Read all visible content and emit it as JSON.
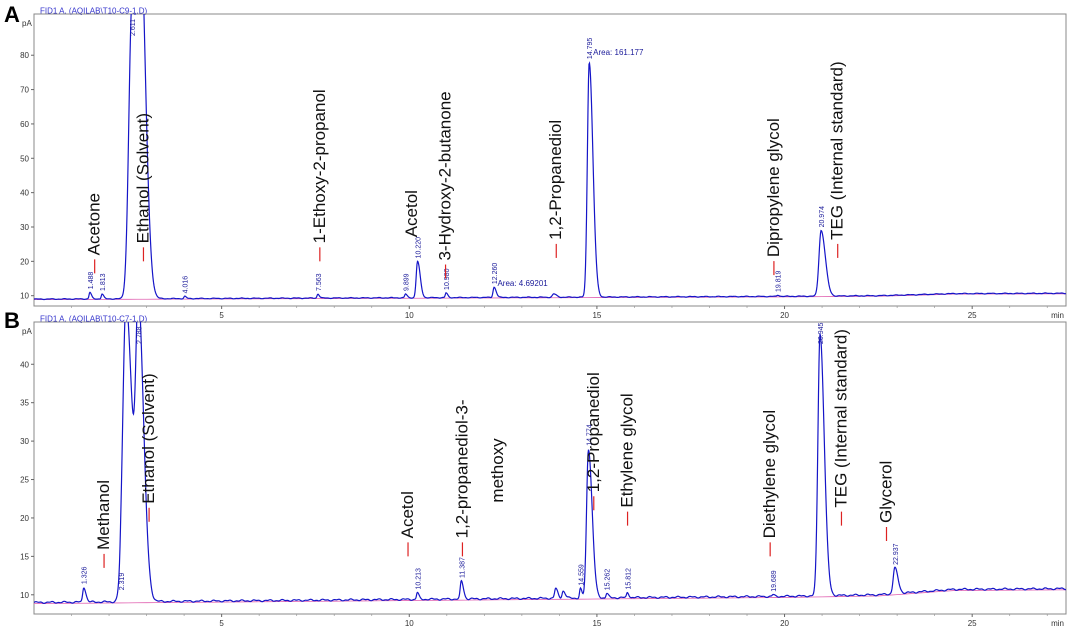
{
  "chart_data": [
    {
      "type": "line",
      "panel": "A",
      "header": "FID1 A, (AQILAB\\T10-C9-1.D)",
      "ylabel": "pA",
      "xlabel": "min",
      "xlim": [
        0,
        27.5
      ],
      "ylim": [
        7,
        92
      ],
      "xticks": [
        5,
        10,
        15,
        20,
        25
      ],
      "yticks": [
        10,
        20,
        30,
        40,
        50,
        60,
        70,
        80
      ],
      "baseline": [
        {
          "x": 0,
          "y": 9.0
        },
        {
          "x": 5,
          "y": 9.2
        },
        {
          "x": 10,
          "y": 9.4
        },
        {
          "x": 15,
          "y": 9.6
        },
        {
          "x": 20,
          "y": 9.8
        },
        {
          "x": 22.5,
          "y": 10.0
        },
        {
          "x": 24.5,
          "y": 10.6
        },
        {
          "x": 27.5,
          "y": 10.7
        }
      ],
      "peaks": [
        {
          "rt": 1.488,
          "height": 11.0,
          "width": 0.03,
          "label": "1.488"
        },
        {
          "rt": 1.813,
          "height": 10.5,
          "width": 0.03,
          "label": "1.813"
        },
        {
          "rt": 2.611,
          "height": 95,
          "width": 0.12,
          "label": "2.611"
        },
        {
          "rt": 2.85,
          "height": 90,
          "width": 0.1,
          "label": ""
        },
        {
          "rt": 4.016,
          "height": 9.8,
          "width": 0.03,
          "label": "4.016"
        },
        {
          "rt": 7.563,
          "height": 10.5,
          "width": 0.03,
          "label": "7.563"
        },
        {
          "rt": 9.899,
          "height": 10.5,
          "width": 0.03,
          "label": "9.899"
        },
        {
          "rt": 10.22,
          "height": 20,
          "width": 0.05,
          "label": "10.220"
        },
        {
          "rt": 10.98,
          "height": 10.8,
          "width": 0.03,
          "label": "10.980"
        },
        {
          "rt": 12.26,
          "height": 12.5,
          "width": 0.04,
          "label": "12.260"
        },
        {
          "rt": 13.85,
          "height": 10.5,
          "width": 0.05,
          "label": ""
        },
        {
          "rt": 14.795,
          "height": 78,
          "width": 0.07,
          "label": "14.795"
        },
        {
          "rt": 19.819,
          "height": 10.2,
          "width": 0.03,
          "label": "19.819"
        },
        {
          "rt": 20.974,
          "height": 29,
          "width": 0.08,
          "label": "20.974"
        }
      ],
      "area_annotations": [
        {
          "text": "Area: 161.177",
          "x": 14.9,
          "y": 80
        },
        {
          "text": "Area: 4.69201",
          "x": 12.35,
          "y": 12.8
        }
      ],
      "compounds": [
        {
          "name": "Acetone",
          "x": 1.75,
          "ybase": 16.5,
          "lead": true
        },
        {
          "name": "Ethanol (Solvent)",
          "x": 3.05,
          "ybase": 20,
          "lead": true
        },
        {
          "name": "1-Ethoxy-2-propanol",
          "x": 7.75,
          "ybase": 20,
          "lead": true
        },
        {
          "name": "Acetol",
          "x": 10.2,
          "ybase": 27,
          "lead": false
        },
        {
          "name": "3-Hydroxy-2-butanone",
          "x": 11.1,
          "ybase": 15,
          "lead": true
        },
        {
          "name": "1,2-Propanediol",
          "x": 14.05,
          "ybase": 21,
          "lead": true
        },
        {
          "name": "Dipropylene glycol",
          "x": 19.85,
          "ybase": 16,
          "lead": true
        },
        {
          "name": "TEG (Internal standard)",
          "x": 21.55,
          "ybase": 21,
          "lead": true
        }
      ]
    },
    {
      "type": "line",
      "panel": "B",
      "header": "FID1 A, (AQILAB\\T10-C7-1.D)",
      "ylabel": "pA",
      "xlabel": "min",
      "xlim": [
        0,
        27.5
      ],
      "ylim": [
        7.5,
        45.5
      ],
      "xticks": [
        5,
        10,
        15,
        20,
        25
      ],
      "yticks": [
        10,
        15,
        20,
        25,
        30,
        35,
        40
      ],
      "baseline": [
        {
          "x": 0,
          "y": 9.0
        },
        {
          "x": 5,
          "y": 9.2
        },
        {
          "x": 10,
          "y": 9.4
        },
        {
          "x": 15,
          "y": 9.6
        },
        {
          "x": 20,
          "y": 9.8
        },
        {
          "x": 22.5,
          "y": 10.0
        },
        {
          "x": 24.5,
          "y": 10.7
        },
        {
          "x": 27.5,
          "y": 10.8
        }
      ],
      "peaks": [
        {
          "rt": 1.326,
          "height": 11.0,
          "width": 0.04,
          "label": "1.326"
        },
        {
          "rt": 2.319,
          "height": 10.2,
          "width": 0.03,
          "label": "2.319"
        },
        {
          "rt": 2.45,
          "height": 48,
          "width": 0.12,
          "label": ""
        },
        {
          "rt": 2.788,
          "height": 45,
          "width": 0.1,
          "label": "2.788"
        },
        {
          "rt": 10.213,
          "height": 10.3,
          "width": 0.03,
          "label": "10.213"
        },
        {
          "rt": 11.387,
          "height": 11.8,
          "width": 0.04,
          "label": "11.387"
        },
        {
          "rt": 13.9,
          "height": 10.8,
          "width": 0.04,
          "label": ""
        },
        {
          "rt": 14.1,
          "height": 10.5,
          "width": 0.04,
          "label": ""
        },
        {
          "rt": 14.559,
          "height": 10.8,
          "width": 0.03,
          "label": "14.559"
        },
        {
          "rt": 14.774,
          "height": 29,
          "width": 0.07,
          "label": "14.774"
        },
        {
          "rt": 15.262,
          "height": 10.2,
          "width": 0.03,
          "label": "15.262"
        },
        {
          "rt": 15.812,
          "height": 10.3,
          "width": 0.03,
          "label": "15.812"
        },
        {
          "rt": 19.689,
          "height": 10.0,
          "width": 0.03,
          "label": "19.689"
        },
        {
          "rt": 20.945,
          "height": 44,
          "width": 0.08,
          "label": "20.945"
        },
        {
          "rt": 22.937,
          "height": 13.5,
          "width": 0.06,
          "label": "22.937"
        }
      ],
      "area_annotations": [],
      "compounds": [
        {
          "name": "Methanol",
          "x": 2.0,
          "ybase": 13.5,
          "lead": true
        },
        {
          "name": "Ethanol (Solvent)",
          "x": 3.2,
          "ybase": 19.5,
          "lead": true
        },
        {
          "name": "Acetol",
          "x": 10.1,
          "ybase": 15,
          "lead": true
        },
        {
          "name": "1,2-propanediol-3-",
          "x": 11.55,
          "ybase": 15,
          "lead": true
        },
        {
          "name": "methoxy",
          "x": 12.5,
          "ybase": 22,
          "lead": false
        },
        {
          "name": "1,2-Propanediol",
          "x": 15.05,
          "ybase": 21,
          "lead": true
        },
        {
          "name": "Ethylene glycol",
          "x": 15.95,
          "ybase": 19,
          "lead": true
        },
        {
          "name": "Diethylene glycol",
          "x": 19.75,
          "ybase": 15,
          "lead": true
        },
        {
          "name": "TEG (Internal standard)",
          "x": 21.65,
          "ybase": 19,
          "lead": true
        },
        {
          "name": "Glycerol",
          "x": 22.85,
          "ybase": 17,
          "lead": true
        }
      ]
    }
  ]
}
